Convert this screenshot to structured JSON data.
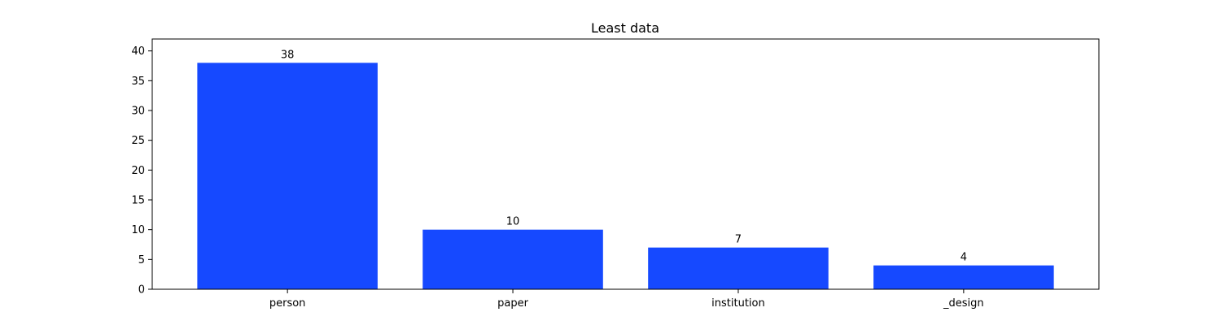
{
  "chart_data": {
    "type": "bar",
    "title": "Least data",
    "xlabel": "",
    "ylabel": "",
    "categories": [
      "person",
      "paper",
      "institution",
      "_design"
    ],
    "values": [
      38,
      10,
      7,
      4
    ],
    "data_labels": [
      "38",
      "10",
      "7",
      "4"
    ],
    "ylim": [
      0,
      42
    ],
    "yticks": [
      0,
      5,
      10,
      15,
      20,
      25,
      30,
      35,
      40
    ],
    "ytick_labels": [
      "0",
      "5",
      "10",
      "15",
      "20",
      "25",
      "30",
      "35",
      "40"
    ],
    "grid": false,
    "legend": "none",
    "bar_color": "#1649ff"
  }
}
